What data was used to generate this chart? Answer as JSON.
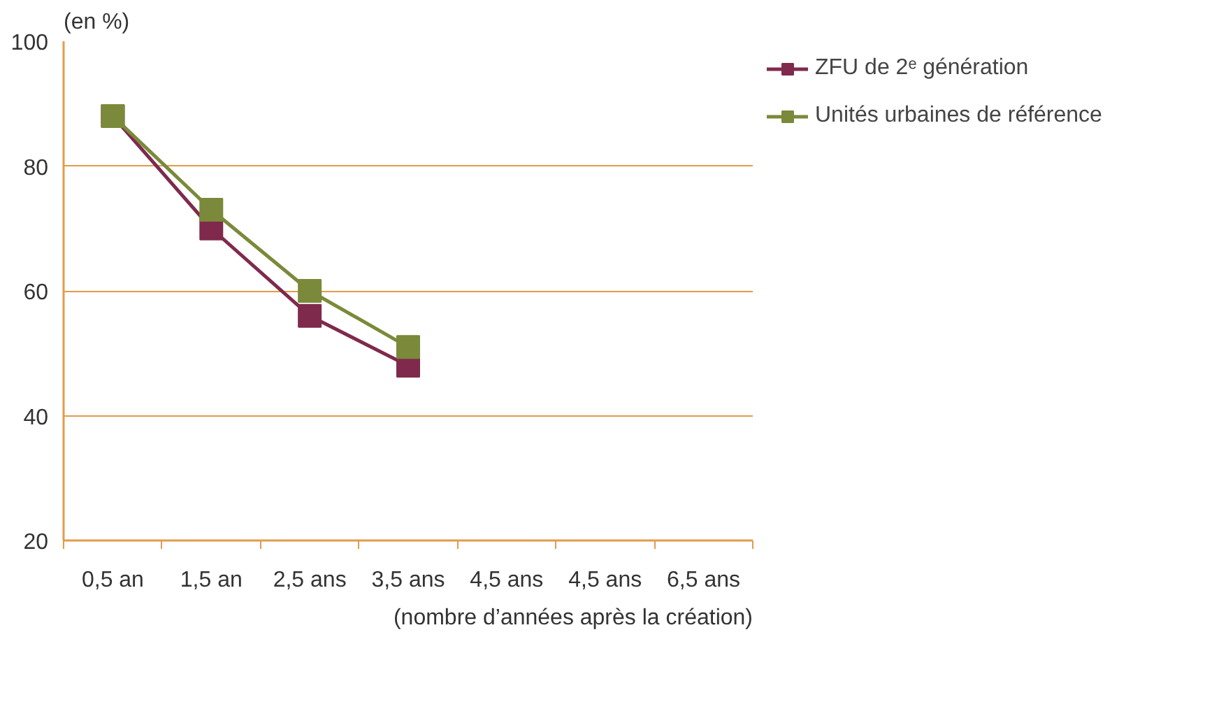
{
  "chart_data": {
    "type": "line",
    "ylabel": "(en %)",
    "xlabel": "(nombre d’années après la création)",
    "categories": [
      "0,5 an",
      "1,5 an",
      "2,5 ans",
      "3,5 ans",
      "4,5 ans",
      "4,5 ans",
      "6,5 ans"
    ],
    "series": [
      {
        "name": "ZFU de 2ᵉ génération",
        "color": "#7f2a4c",
        "values": [
          88,
          70,
          56,
          48,
          null,
          null,
          null
        ]
      },
      {
        "name": "Unités urbaines de référence",
        "color": "#7a8a3a",
        "values": [
          88,
          73,
          60,
          51,
          null,
          null,
          null
        ]
      }
    ],
    "ylim": [
      20,
      100
    ],
    "yticks": [
      20,
      40,
      60,
      80,
      100
    ],
    "grid": "y",
    "legend": "right",
    "marker": "square",
    "line_style": "solid"
  }
}
